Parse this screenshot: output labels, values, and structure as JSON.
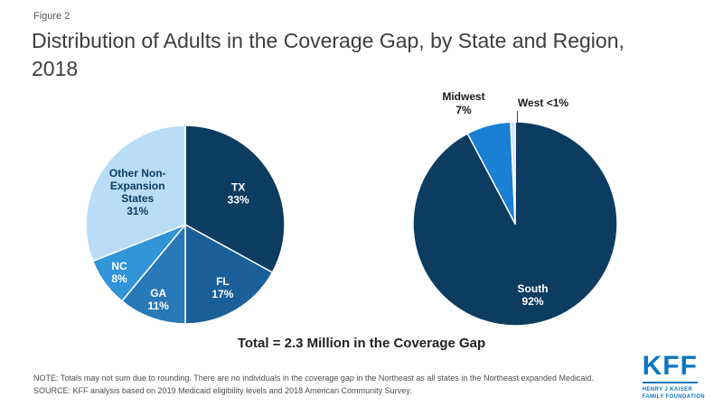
{
  "figure_label": "Figure 2",
  "title": "Distribution of Adults in the Coverage Gap, by State and Region, 2018",
  "total_caption": "Total = 2.3 Million in the Coverage Gap",
  "note": "NOTE: Totals may not sum due to rounding. There are no individuals in the coverage gap in the Northeast as all states in the Northeast expanded Medicaid.",
  "source": "SOURCE: KFF analysis based on 2019 Medicaid eligibility levels and 2018 American Community Survey.",
  "logo": {
    "text": "KFF",
    "sub1": "HENRY J KAISER",
    "sub2": "FAMILY FOUNDATION"
  },
  "colors": {
    "dark_navy": "#0d3c61",
    "medium_blue": "#1a5f99",
    "blue": "#2979b8",
    "bright_blue": "#3193d8",
    "light_blue": "#b9ddf6",
    "kff_blue": "#0a76c2"
  },
  "chart_data": [
    {
      "type": "pie",
      "name": "coverage-gap-by-state",
      "legend_position": "inside",
      "slices": [
        {
          "label": "TX",
          "value": 33,
          "pct": "33%",
          "color": "#0d3c61",
          "text_color": "#ffffff",
          "lines": [
            "TX",
            "33%"
          ],
          "label_r": 0.62
        },
        {
          "label": "FL",
          "value": 17,
          "pct": "17%",
          "color": "#1a5f99",
          "text_color": "#ffffff",
          "lines": [
            "FL",
            "17%"
          ],
          "label_r": 0.74
        },
        {
          "label": "GA",
          "value": 11,
          "pct": "11%",
          "color": "#2979b8",
          "text_color": "#ffffff",
          "lines": [
            "GA",
            "11%"
          ],
          "label_r": 0.8
        },
        {
          "label": "NC",
          "value": 8,
          "pct": "8%",
          "color": "#3193d8",
          "text_color": "#ffffff",
          "lines": [
            "NC",
            "8%"
          ],
          "label_r": 0.82
        },
        {
          "label": "Other Non-Expansion States",
          "value": 31,
          "pct": "31%",
          "color": "#b9ddf6",
          "text_color": "#0d3c61",
          "lines": [
            "Other Non-",
            "Expansion",
            "States",
            "31%"
          ],
          "label_r": 0.58
        }
      ]
    },
    {
      "type": "pie",
      "name": "coverage-gap-by-region",
      "legend_position": "inside-and-outside",
      "slices": [
        {
          "label": "South",
          "value": 92,
          "pct": "92%",
          "color": "#0d3c61",
          "text_color": "#ffffff",
          "lines": [
            "South",
            "92%"
          ],
          "label_r": 0.72
        },
        {
          "label": "Midwest",
          "value": 7,
          "pct": "7%",
          "color": "#1b7fd4",
          "outside_label": "Midwest\n7%"
        },
        {
          "label": "West",
          "value": 0.7,
          "pct": "<1%",
          "color": "#cfe3f5",
          "outside_label": "West <1%"
        }
      ]
    }
  ]
}
